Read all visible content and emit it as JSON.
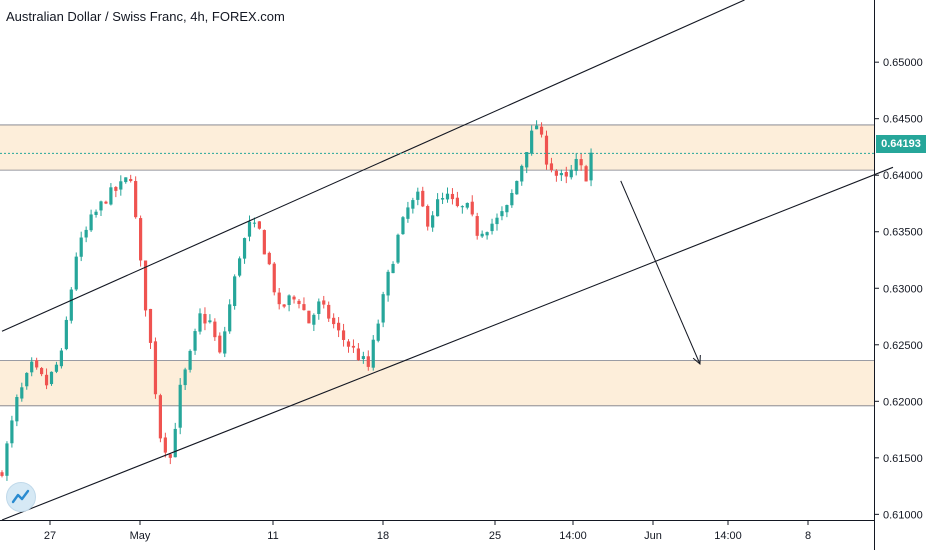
{
  "header": {
    "title": "Australian Dollar / Swiss Franc, 4h, FOREX.com"
  },
  "price_badge": {
    "value": "0.64193",
    "color": "#26a69a"
  },
  "colors": {
    "up": "#26a69a",
    "down": "#ef5350",
    "zone_fill": "#fdebd3",
    "line": "#131722"
  },
  "chart_data": {
    "type": "candlestick",
    "symbol": "Australian Dollar / Swiss Franc",
    "interval": "4h",
    "source": "FOREX.com",
    "ylim": [
      0.6095,
      0.6555
    ],
    "y_ticks": [
      "0.65000",
      "0.64500",
      "0.64000",
      "0.63500",
      "0.63000",
      "0.62500",
      "0.62000",
      "0.61500",
      "0.61000"
    ],
    "x_ticks": [
      "27",
      "May",
      "11",
      "18",
      "25",
      "14:00",
      "Jun",
      "14:00",
      "8"
    ],
    "last_price": 0.64193,
    "zones": [
      {
        "from": 0.64045,
        "to": 0.64445
      },
      {
        "from": 0.6196,
        "to": 0.6236
      }
    ],
    "channel": {
      "upper": [
        {
          "bar": 0,
          "price": 0.6262
        },
        {
          "bar": 150,
          "price": 0.6555
        }
      ],
      "lower": [
        {
          "bar": 0,
          "price": 0.6095
        },
        {
          "bar": 180,
          "price": 0.6407
        }
      ]
    },
    "arrow": [
      {
        "bar": 125,
        "price": 0.6395
      },
      {
        "bar": 141,
        "price": 0.6233
      }
    ],
    "close_path": [
      [
        0,
        0.614
      ],
      [
        3,
        0.62
      ],
      [
        6,
        0.623
      ],
      [
        9,
        0.6215
      ],
      [
        12,
        0.624
      ],
      [
        15,
        0.633
      ],
      [
        18,
        0.636
      ],
      [
        21,
        0.638
      ],
      [
        24,
        0.639
      ],
      [
        26,
        0.64
      ],
      [
        28,
        0.632
      ],
      [
        30,
        0.625
      ],
      [
        32,
        0.617
      ],
      [
        34,
        0.615
      ],
      [
        36,
        0.621
      ],
      [
        38,
        0.624
      ],
      [
        40,
        0.6275
      ],
      [
        42,
        0.627
      ],
      [
        44,
        0.624
      ],
      [
        46,
        0.6285
      ],
      [
        48,
        0.633
      ],
      [
        50,
        0.6355
      ],
      [
        52,
        0.635
      ],
      [
        54,
        0.632
      ],
      [
        56,
        0.628
      ],
      [
        58,
        0.629
      ],
      [
        60,
        0.629
      ],
      [
        62,
        0.627
      ],
      [
        64,
        0.6285
      ],
      [
        66,
        0.6275
      ],
      [
        68,
        0.626
      ],
      [
        70,
        0.625
      ],
      [
        72,
        0.624
      ],
      [
        74,
        0.623
      ],
      [
        76,
        0.627
      ],
      [
        78,
        0.631
      ],
      [
        80,
        0.6345
      ],
      [
        82,
        0.637
      ],
      [
        84,
        0.638
      ],
      [
        86,
        0.636
      ],
      [
        88,
        0.6375
      ],
      [
        90,
        0.638
      ],
      [
        92,
        0.637
      ],
      [
        94,
        0.637
      ],
      [
        96,
        0.635
      ],
      [
        98,
        0.6355
      ],
      [
        100,
        0.636
      ],
      [
        102,
        0.637
      ],
      [
        104,
        0.6395
      ],
      [
        106,
        0.6425
      ],
      [
        108,
        0.6445
      ],
      [
        110,
        0.6415
      ],
      [
        112,
        0.64
      ],
      [
        114,
        0.6395
      ],
      [
        116,
        0.641
      ],
      [
        118,
        0.64
      ],
      [
        119,
        0.6419
      ]
    ]
  }
}
